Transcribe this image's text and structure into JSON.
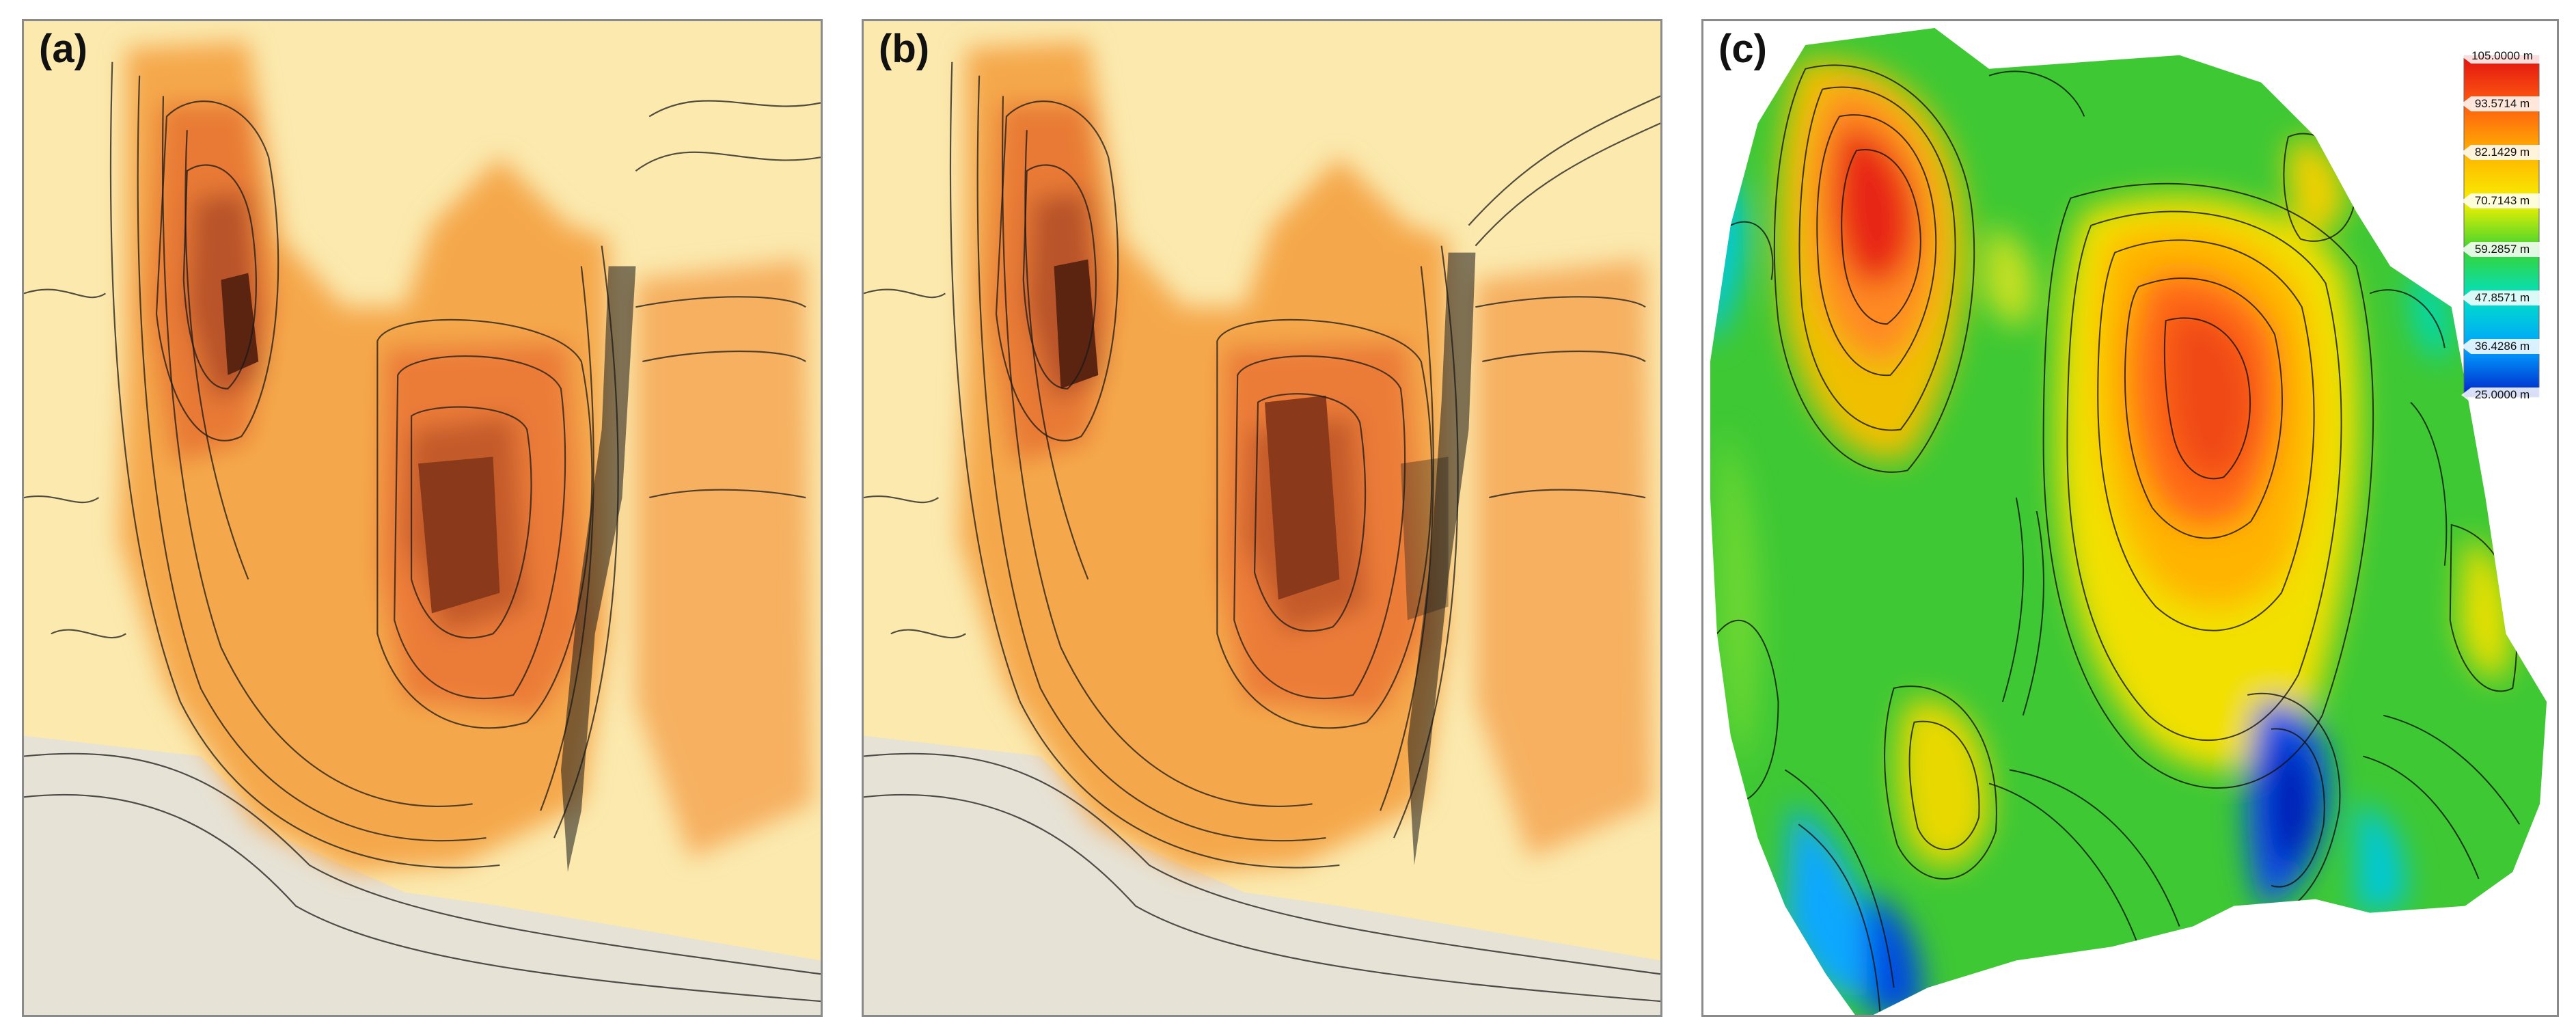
{
  "panels": [
    {
      "id": "a",
      "label": "(a)"
    },
    {
      "id": "b",
      "label": "(b)"
    },
    {
      "id": "c",
      "label": "(c)"
    }
  ],
  "legend": {
    "ticks": [
      "105.0000 m",
      "93.5714 m",
      "82.1429 m",
      "70.7143 m",
      "59.2857 m",
      "47.8571 m",
      "36.4286 m",
      "25.0000 m"
    ],
    "colors": [
      "#e01010",
      "#ff5a10",
      "#ffb400",
      "#f6f000",
      "#38d430",
      "#00e0c8",
      "#00a0ff",
      "#0020c8"
    ]
  },
  "colors": {
    "elevation_high": "#5a2410",
    "elevation_mid": "#f08a2a",
    "elevation_low": "#fbe6a0",
    "background_low": "#e8e4da",
    "contour": "#1a1a1a"
  }
}
